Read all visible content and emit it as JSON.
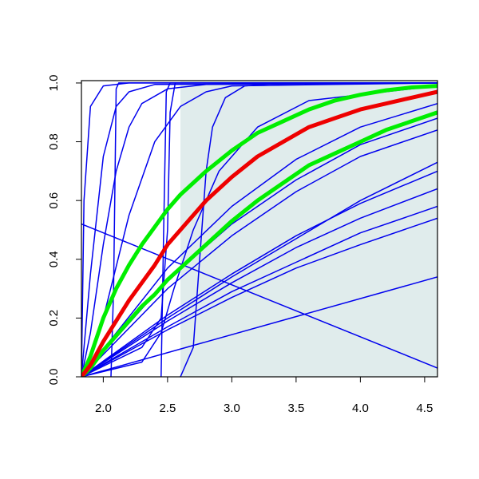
{
  "chart_data": {
    "type": "line",
    "xlim": [
      1.83,
      4.6
    ],
    "ylim": [
      0,
      1.008
    ],
    "xticks": [
      {
        "value": 2.0,
        "label": "2.0"
      },
      {
        "value": 2.5,
        "label": "2.5"
      },
      {
        "value": 3.0,
        "label": "3.0"
      },
      {
        "value": 3.5,
        "label": "3.5"
      },
      {
        "value": 4.0,
        "label": "4.0"
      },
      {
        "value": 4.5,
        "label": "4.5"
      }
    ],
    "yticks": [
      {
        "value": 0.0,
        "label": "0.0"
      },
      {
        "value": 0.2,
        "label": "0.2"
      },
      {
        "value": 0.4,
        "label": "0.4"
      },
      {
        "value": 0.6,
        "label": "0.6"
      },
      {
        "value": 0.8,
        "label": "0.8"
      },
      {
        "value": 1.0,
        "label": "1.0"
      }
    ],
    "shaded_region": {
      "x": [
        2.6,
        4.6
      ],
      "color": "#e0ecec"
    },
    "series": [
      {
        "color": "#0000ee",
        "width": 1.5,
        "x": [
          1.83,
          4.6
        ],
        "values": [
          0.52,
          0.03
        ]
      },
      {
        "color": "#0000ee",
        "width": 1.5,
        "x": [
          1.83,
          4.6
        ],
        "values": [
          0,
          0.34
        ]
      },
      {
        "color": "#0000ee",
        "width": 1.5,
        "x": [
          1.83,
          1.85,
          1.9,
          2.0,
          2.2,
          4.6
        ],
        "values": [
          0,
          0.6,
          0.92,
          0.99,
          1,
          1
        ]
      },
      {
        "color": "#0000ee",
        "width": 1.5,
        "x": [
          1.83,
          1.9,
          2.0,
          2.1,
          2.2,
          2.4,
          4.6
        ],
        "values": [
          0,
          0.35,
          0.75,
          0.92,
          0.97,
          0.995,
          1
        ]
      },
      {
        "color": "#0000ee",
        "width": 1.5,
        "x": [
          1.83,
          1.9,
          2.0,
          2.1,
          2.2,
          2.3,
          2.5,
          2.8,
          4.6
        ],
        "values": [
          0,
          0.15,
          0.45,
          0.7,
          0.85,
          0.93,
          0.98,
          0.995,
          1
        ]
      },
      {
        "color": "#0000ee",
        "width": 1.5,
        "x": [
          1.83,
          2.0,
          2.2,
          2.4,
          2.6,
          2.8,
          3.0,
          4.6
        ],
        "values": [
          0,
          0.2,
          0.55,
          0.8,
          0.92,
          0.97,
          0.99,
          1
        ]
      },
      {
        "color": "#0000ee",
        "width": 1.5,
        "x": [
          2.06,
          2.08,
          2.1,
          2.12,
          2.3,
          4.6
        ],
        "values": [
          0,
          0.3,
          0.98,
          1,
          1,
          1
        ]
      },
      {
        "color": "#0000ee",
        "width": 1.5,
        "x": [
          2.45,
          2.47,
          2.49,
          2.52,
          4.6
        ],
        "values": [
          0,
          0.5,
          0.97,
          1,
          1
        ]
      },
      {
        "color": "#0000ee",
        "width": 1.5,
        "x": [
          1.83,
          2.3,
          2.45,
          2.5,
          2.52,
          2.56,
          4.6
        ],
        "values": [
          0,
          0.1,
          0.2,
          0.5,
          0.9,
          1,
          1
        ]
      },
      {
        "color": "#0000ee",
        "width": 1.5,
        "x": [
          2.6,
          2.7,
          2.75,
          2.8,
          2.85,
          2.95,
          3.1,
          3.4,
          4.6
        ],
        "values": [
          0,
          0.1,
          0.4,
          0.7,
          0.85,
          0.95,
          0.99,
          1,
          1
        ]
      },
      {
        "color": "#0000ee",
        "width": 1.5,
        "x": [
          1.83,
          2.3,
          2.45,
          2.55,
          2.7,
          2.9,
          3.2,
          3.6,
          4.6
        ],
        "values": [
          0,
          0.05,
          0.15,
          0.3,
          0.5,
          0.7,
          0.85,
          0.94,
          0.99
        ]
      },
      {
        "color": "#0000ee",
        "width": 1.5,
        "x": [
          1.83,
          2.5,
          3.0,
          3.5,
          4.0,
          4.6
        ],
        "values": [
          0,
          0.16,
          0.27,
          0.37,
          0.45,
          0.54
        ]
      },
      {
        "color": "#0000ee",
        "width": 1.5,
        "x": [
          1.83,
          2.5,
          3.0,
          3.5,
          4.0,
          4.6
        ],
        "values": [
          0,
          0.17,
          0.29,
          0.39,
          0.49,
          0.58
        ]
      },
      {
        "color": "#0000ee",
        "width": 1.5,
        "x": [
          1.83,
          2.5,
          3.0,
          3.5,
          4.0,
          4.6
        ],
        "values": [
          0,
          0.19,
          0.32,
          0.44,
          0.54,
          0.64
        ]
      },
      {
        "color": "#0000ee",
        "width": 1.5,
        "x": [
          1.83,
          2.5,
          3.0,
          3.5,
          4.0,
          4.6
        ],
        "values": [
          0,
          0.21,
          0.35,
          0.48,
          0.59,
          0.7
        ]
      },
      {
        "color": "#0000ee",
        "width": 1.5,
        "x": [
          1.83,
          2.5,
          3.0,
          3.5,
          4.0,
          4.6
        ],
        "values": [
          0,
          0.2,
          0.34,
          0.47,
          0.6,
          0.73
        ]
      },
      {
        "color": "#0000ee",
        "width": 1.5,
        "x": [
          1.83,
          2.5,
          3.0,
          3.5,
          4.0,
          4.6
        ],
        "values": [
          0,
          0.3,
          0.48,
          0.63,
          0.75,
          0.84
        ]
      },
      {
        "color": "#0000ee",
        "width": 1.5,
        "x": [
          1.83,
          2.5,
          3.0,
          3.5,
          4.0,
          4.6
        ],
        "values": [
          0,
          0.33,
          0.52,
          0.67,
          0.79,
          0.88
        ]
      },
      {
        "color": "#0000ee",
        "width": 1.5,
        "x": [
          1.83,
          2.5,
          3.0,
          3.5,
          4.0,
          4.6
        ],
        "values": [
          0,
          0.37,
          0.58,
          0.74,
          0.85,
          0.93
        ]
      },
      {
        "color": "#00ee00",
        "width": 5,
        "x": [
          1.83,
          1.9,
          2.0,
          2.1,
          2.2,
          2.3,
          2.4,
          2.5,
          2.6,
          2.8,
          3.0,
          3.2,
          3.4,
          3.6,
          3.8,
          4.0,
          4.2,
          4.4,
          4.6
        ],
        "values": [
          0,
          0.07,
          0.2,
          0.3,
          0.38,
          0.45,
          0.51,
          0.57,
          0.62,
          0.7,
          0.77,
          0.83,
          0.87,
          0.91,
          0.94,
          0.96,
          0.975,
          0.985,
          0.99
        ]
      },
      {
        "color": "#00ee00",
        "width": 5,
        "x": [
          1.83,
          1.9,
          2.0,
          2.1,
          2.2,
          2.3,
          2.4,
          2.5,
          2.6,
          2.8,
          3.0,
          3.2,
          3.4,
          3.6,
          3.8,
          4.0,
          4.2,
          4.4,
          4.6
        ],
        "values": [
          0,
          0.03,
          0.09,
          0.14,
          0.19,
          0.24,
          0.28,
          0.33,
          0.37,
          0.45,
          0.53,
          0.6,
          0.66,
          0.72,
          0.76,
          0.8,
          0.84,
          0.87,
          0.9
        ]
      },
      {
        "color": "#ee0000",
        "width": 5,
        "x": [
          1.83,
          1.9,
          2.0,
          2.1,
          2.2,
          2.3,
          2.4,
          2.5,
          2.6,
          2.8,
          3.0,
          3.2,
          3.4,
          3.6,
          3.8,
          4.0,
          4.2,
          4.4,
          4.6
        ],
        "values": [
          0,
          0.04,
          0.12,
          0.19,
          0.26,
          0.32,
          0.38,
          0.45,
          0.5,
          0.6,
          0.68,
          0.75,
          0.8,
          0.85,
          0.88,
          0.91,
          0.93,
          0.95,
          0.97
        ]
      }
    ]
  }
}
